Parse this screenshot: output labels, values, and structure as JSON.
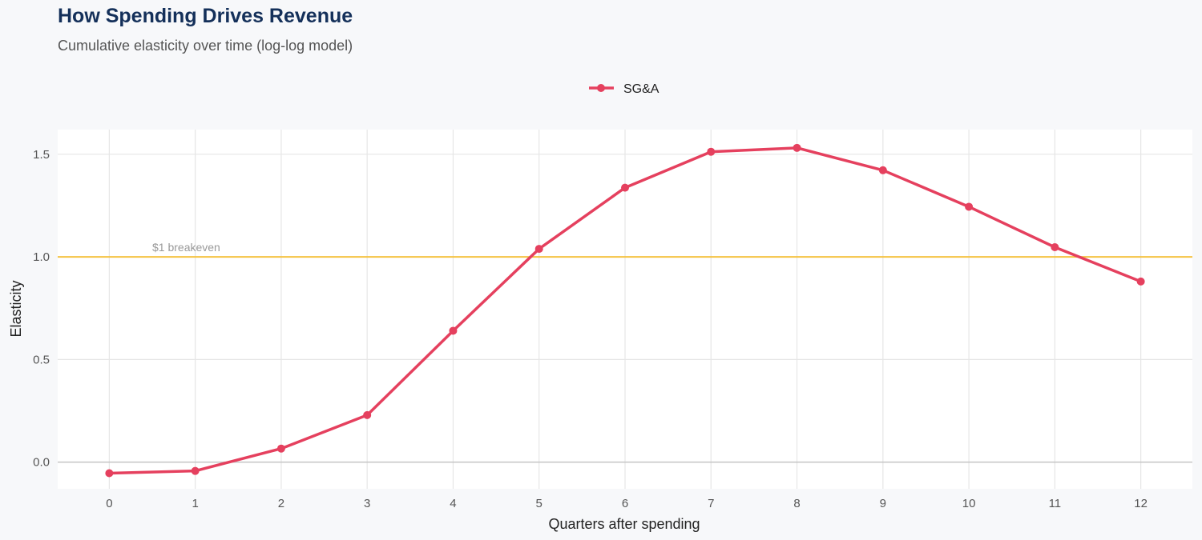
{
  "title": "How Spending Drives Revenue",
  "subtitle": "Cumulative elasticity over time (log-log model)",
  "chart_data": {
    "type": "line",
    "xlabel": "Quarters after spending",
    "ylabel": "Elasticity",
    "x": [
      0,
      1,
      2,
      3,
      4,
      5,
      6,
      7,
      8,
      9,
      10,
      11,
      12
    ],
    "xticks": [
      "0",
      "1",
      "2",
      "3",
      "4",
      "5",
      "6",
      "7",
      "8",
      "9",
      "10",
      "11",
      "12"
    ],
    "yticks": [
      "0.0",
      "0.5",
      "1.0",
      "1.5"
    ],
    "ytick_values": [
      0,
      0.5,
      1.0,
      1.5
    ],
    "xlim": [
      -0.6,
      12.6
    ],
    "ylim": [
      -0.13,
      1.62
    ],
    "grid": true,
    "legend": "top",
    "series": [
      {
        "name": "SG&A",
        "color": "#e5405e",
        "values": [
          -0.054,
          -0.043,
          0.066,
          0.229,
          0.64,
          1.039,
          1.337,
          1.512,
          1.531,
          1.422,
          1.244,
          1.047,
          0.88
        ]
      }
    ],
    "reference_line": {
      "y": 1.0,
      "label": "$1 breakeven",
      "color": "#f5c342"
    }
  }
}
